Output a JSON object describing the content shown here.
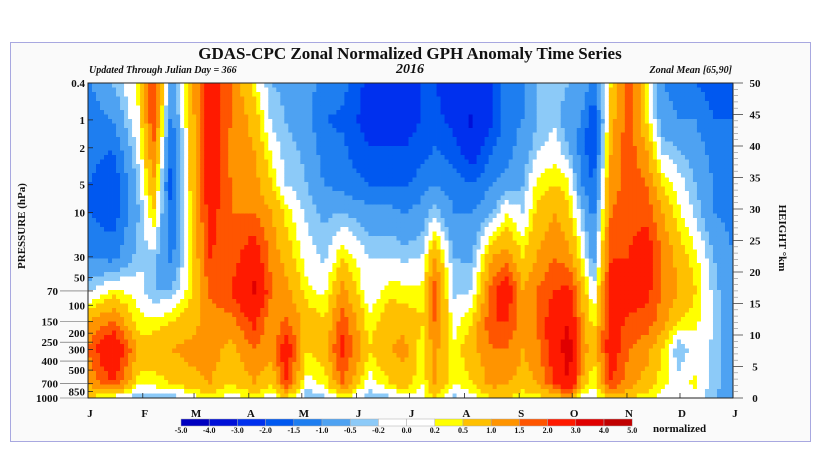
{
  "header": {
    "title": "GDAS-CPC Zonal Normalized GPH Anomaly Time Series",
    "updated": "Updated Through Julian Day = 366",
    "year": "2016",
    "zonal_mean": "Zonal Mean [65,90]"
  },
  "chart_data": {
    "type": "heatmap",
    "style": "filled contour",
    "title": "GDAS-CPC Zonal Normalized GPH Anomaly Time Series",
    "xlabel": "",
    "ylabel_left": "PRESSURE (hPa)",
    "ylabel_right": "HEIGHT °km",
    "y_scale_left": "log",
    "ylim_left_hPa": [
      1000,
      0.4
    ],
    "ylim_right_km": [
      0,
      50
    ],
    "xlim_day": [
      1,
      366
    ],
    "x_tick_labels": [
      "J",
      "F",
      "M",
      "A",
      "M",
      "J",
      "J",
      "A",
      "S",
      "O",
      "N",
      "D",
      "J"
    ],
    "y_tick_labels_left": [
      "0.4",
      "1",
      "2",
      "5",
      "10",
      "30",
      "50",
      "70",
      "100",
      "150",
      "200",
      "250",
      "300",
      "400",
      "500",
      "700",
      "850",
      "1000"
    ],
    "y_tick_values_left": [
      0.4,
      1,
      2,
      5,
      10,
      30,
      50,
      70,
      100,
      150,
      200,
      250,
      300,
      400,
      500,
      700,
      850,
      1000
    ],
    "y_tick_labels_right": [
      "0",
      "5",
      "10",
      "15",
      "20",
      "25",
      "30",
      "35",
      "40",
      "45",
      "50"
    ],
    "colorbar": {
      "unit": "normalized",
      "boundaries": [
        -5.0,
        -4.0,
        -3.0,
        -2.0,
        -1.5,
        -1.0,
        -0.5,
        -0.2,
        0.0,
        0.2,
        0.5,
        1.0,
        1.5,
        2.0,
        3.0,
        4.0,
        5.0
      ],
      "labels": [
        "-5.0",
        "-4.0",
        "-3.0",
        "-2.0",
        "-1.5",
        "-1.0",
        "-0.5",
        "-0.2",
        "0.0",
        "0.2",
        "0.5",
        "1.0",
        "1.5",
        "2.0",
        "3.0",
        "4.0",
        "5.0"
      ],
      "colors": [
        "#0000c0",
        "#0010d8",
        "#0030ee",
        "#0058f0",
        "#1e7ef0",
        "#4ea2f2",
        "#8ccaf8",
        "#ffffff",
        "#ffffff",
        "#ffff00",
        "#ffc000",
        "#ff9400",
        "#ff5500",
        "#ff1a00",
        "#e00000",
        "#c00000"
      ]
    },
    "pressure_levels": [
      0.4,
      1,
      2,
      5,
      10,
      30,
      70,
      150,
      300,
      700,
      1000
    ],
    "days": [
      1,
      15,
      30,
      38,
      48,
      60,
      70,
      82,
      95,
      105,
      113,
      125,
      135,
      145,
      160,
      172,
      180,
      190,
      197,
      208,
      218,
      230,
      238,
      247,
      255,
      265,
      273,
      280,
      287,
      297,
      307,
      317,
      326,
      335,
      345,
      355,
      366
    ],
    "z": [
      [
        -1.1,
        -1.2,
        -1.2,
        -1.5,
        -1.5,
        -1.0,
        -0.3,
        1.0,
        1.5,
        1.0,
        0.5
      ],
      [
        -0.5,
        -1.0,
        -1.5,
        -2.0,
        -1.8,
        -1.2,
        0.3,
        1.5,
        3.0,
        2.0,
        0.0
      ],
      [
        0.3,
        0.2,
        0.0,
        -0.3,
        -0.5,
        -0.3,
        0.0,
        0.3,
        0.8,
        0.3,
        -0.5
      ],
      [
        2.0,
        2.0,
        1.5,
        1.0,
        0.5,
        -0.3,
        -0.5,
        0.3,
        0.8,
        0.3,
        -0.3
      ],
      [
        -0.8,
        -1.2,
        -1.5,
        -1.8,
        -1.5,
        -1.2,
        -0.5,
        0.5,
        1.0,
        0.5,
        -0.5
      ],
      [
        1.0,
        0.8,
        0.8,
        0.8,
        0.6,
        0.5,
        0.5,
        0.8,
        1.2,
        0.8,
        0.0
      ],
      [
        2.5,
        2.5,
        2.5,
        2.5,
        2.3,
        2.0,
        1.6,
        1.2,
        1.3,
        1.0,
        0.3
      ],
      [
        1.5,
        1.5,
        1.3,
        1.5,
        1.5,
        1.7,
        2.0,
        1.3,
        0.8,
        0.5,
        0.0
      ],
      [
        0.3,
        0.8,
        1.0,
        1.2,
        1.5,
        2.5,
        3.2,
        2.2,
        1.5,
        1.0,
        0.3
      ],
      [
        -0.5,
        -0.3,
        0.1,
        0.5,
        1.0,
        1.3,
        1.5,
        1.0,
        1.2,
        0.5,
        0.0
      ],
      [
        -0.6,
        -0.5,
        -0.4,
        -0.2,
        0.4,
        0.8,
        1.2,
        1.6,
        2.5,
        2.0,
        0.5
      ],
      [
        -0.8,
        -0.8,
        -0.6,
        -0.5,
        -0.3,
        0.0,
        0.3,
        0.8,
        0.5,
        0.0,
        -0.5
      ],
      [
        -1.2,
        -1.5,
        -1.3,
        -1.0,
        -0.6,
        -0.3,
        0.1,
        0.5,
        0.8,
        0.3,
        -0.3
      ],
      [
        -1.3,
        -1.6,
        -1.4,
        -1.2,
        -0.5,
        0.5,
        1.2,
        1.8,
        2.2,
        1.5,
        0.3
      ],
      [
        -2.2,
        -2.3,
        -2.0,
        -1.5,
        -0.8,
        -0.2,
        -0.1,
        0.3,
        0.5,
        0.0,
        -0.5
      ],
      [
        -2.2,
        -2.2,
        -2.0,
        -1.5,
        -0.8,
        -0.2,
        0.4,
        0.8,
        1.0,
        0.5,
        -0.3
      ],
      [
        -2.2,
        -2.2,
        -2.0,
        -1.6,
        -1.0,
        -0.3,
        0.3,
        0.8,
        1.2,
        0.8,
        0.0
      ],
      [
        -2.0,
        -2.0,
        -1.8,
        -1.2,
        -0.8,
        -0.2,
        0.3,
        0.5,
        0.3,
        0.2,
        0.0
      ],
      [
        -2.0,
        -1.8,
        -1.5,
        -1.0,
        -0.3,
        1.0,
        1.8,
        1.5,
        1.2,
        1.0,
        0.5
      ],
      [
        -2.3,
        -2.2,
        -1.8,
        -1.2,
        -1.0,
        -0.5,
        -0.3,
        0.0,
        0.3,
        0.2,
        -0.3
      ],
      [
        -2.3,
        -3.2,
        -2.5,
        -1.5,
        -1.0,
        -0.6,
        -0.2,
        0.5,
        0.8,
        0.5,
        0.0
      ],
      [
        -2.0,
        -2.0,
        -1.5,
        -1.0,
        -0.5,
        1.0,
        1.8,
        2.0,
        1.5,
        1.2,
        0.5
      ],
      [
        -1.0,
        -1.2,
        -1.2,
        -0.8,
        0.2,
        1.2,
        2.5,
        2.0,
        1.5,
        1.0,
        0.5
      ],
      [
        -1.0,
        -1.0,
        -0.8,
        -0.5,
        -0.2,
        0.5,
        1.0,
        1.2,
        1.0,
        0.8,
        0.2
      ],
      [
        -0.5,
        -0.5,
        -0.3,
        0.3,
        0.6,
        1.0,
        1.5,
        1.5,
        1.3,
        1.0,
        0.3
      ],
      [
        -0.3,
        -0.3,
        0.0,
        0.5,
        1.0,
        1.5,
        2.0,
        2.5,
        2.5,
        2.0,
        0.5
      ],
      [
        -0.5,
        -0.8,
        -0.5,
        0.3,
        0.6,
        1.2,
        2.2,
        3.0,
        3.5,
        3.0,
        1.0
      ],
      [
        -0.5,
        -1.0,
        -1.2,
        -1.0,
        -0.3,
        0.3,
        1.0,
        1.2,
        1.5,
        1.0,
        0.0
      ],
      [
        -1.2,
        -2.0,
        -2.0,
        -1.5,
        -1.2,
        -0.8,
        -0.2,
        0.3,
        0.5,
        0.2,
        -0.2
      ],
      [
        0.5,
        0.8,
        1.0,
        1.2,
        1.5,
        2.0,
        2.3,
        2.5,
        2.5,
        2.0,
        0.8
      ],
      [
        2.0,
        1.8,
        1.8,
        1.8,
        1.8,
        2.0,
        2.5,
        1.8,
        1.5,
        1.2,
        0.5
      ],
      [
        0.3,
        0.5,
        1.0,
        1.5,
        1.8,
        2.5,
        2.2,
        1.8,
        1.2,
        0.8,
        0.3
      ],
      [
        -1.0,
        -0.8,
        -0.3,
        0.5,
        1.0,
        1.5,
        1.5,
        1.2,
        0.5,
        0.3,
        0.0
      ],
      [
        -1.2,
        -1.0,
        -0.5,
        0.0,
        0.3,
        0.8,
        1.0,
        0.5,
        -0.5,
        0.0,
        0.0
      ],
      [
        -1.5,
        -1.0,
        -0.8,
        -0.5,
        -0.3,
        0.3,
        0.5,
        0.3,
        0.0,
        0.3,
        0.0
      ],
      [
        -1.8,
        -1.5,
        -1.2,
        -1.0,
        -1.0,
        -0.5,
        -0.3,
        -0.2,
        -0.3,
        -0.3,
        -0.5
      ],
      [
        -1.5,
        -1.5,
        -1.5,
        -1.2,
        -1.2,
        -1.0,
        -1.0,
        -1.0,
        -1.0,
        -0.8,
        -0.8
      ]
    ]
  }
}
